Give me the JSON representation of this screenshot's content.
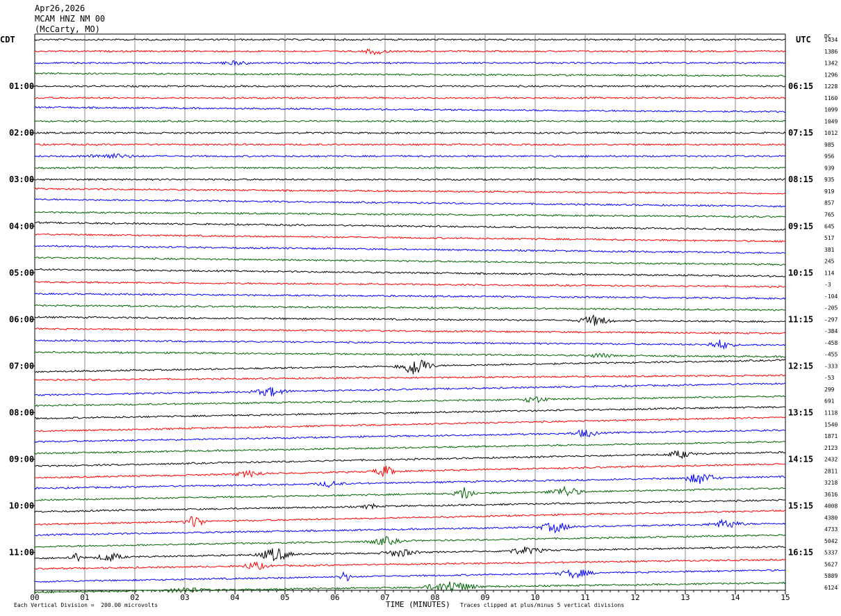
{
  "header": {
    "date": "Apr26,2026",
    "station": "MCAM HNZ NM 00",
    "location": "(McCarty, MO)"
  },
  "left_tz": "CDT",
  "right_tz": "UTC",
  "dc_header": "DC",
  "footer": {
    "scale": "Each Vertical Division =  200.00 microvolts",
    "xlabel": "TIME (MINUTES)",
    "clip_note": "Traces clipped at plus/minus 5 vertical divisions"
  },
  "colors": {
    "trace_cycle": [
      "#000000",
      "#ff0000",
      "#0000ff",
      "#006400"
    ],
    "grid": "#888888"
  },
  "chart_data": {
    "type": "line",
    "description_free_fields": true,
    "x_ticks": [
      "00",
      "01",
      "02",
      "03",
      "04",
      "05",
      "06",
      "07",
      "08",
      "09",
      "10",
      "11",
      "12",
      "13",
      "14",
      "15"
    ],
    "xlim": [
      0,
      15
    ],
    "left_hour_labels": [
      {
        "row": 4,
        "label": "01:00"
      },
      {
        "row": 8,
        "label": "02:00"
      },
      {
        "row": 12,
        "label": "03:00"
      },
      {
        "row": 16,
        "label": "04:00"
      },
      {
        "row": 20,
        "label": "05:00"
      },
      {
        "row": 24,
        "label": "06:00"
      },
      {
        "row": 28,
        "label": "07:00"
      },
      {
        "row": 32,
        "label": "08:00"
      },
      {
        "row": 36,
        "label": "09:00"
      },
      {
        "row": 40,
        "label": "10:00"
      },
      {
        "row": 44,
        "label": "11:00"
      }
    ],
    "right_hour_labels": [
      {
        "row": 0,
        "label": ""
      },
      {
        "row": 4,
        "label": "06:15"
      },
      {
        "row": 8,
        "label": "07:15"
      },
      {
        "row": 12,
        "label": "08:15"
      },
      {
        "row": 16,
        "label": "09:15"
      },
      {
        "row": 20,
        "label": "10:15"
      },
      {
        "row": 24,
        "label": "11:15"
      },
      {
        "row": 28,
        "label": "12:15"
      },
      {
        "row": 32,
        "label": "13:15"
      },
      {
        "row": 36,
        "label": "14:15"
      },
      {
        "row": 40,
        "label": "15:15"
      },
      {
        "row": 44,
        "label": "16:15"
      }
    ],
    "dc_values": [
      "1434",
      "1386",
      "1342",
      "1296",
      "1228",
      "1160",
      "1099",
      "1049",
      "1012",
      "985",
      "956",
      "939",
      "935",
      "919",
      "857",
      "765",
      "645",
      "517",
      "381",
      "245",
      "114",
      "-3",
      "-104",
      "-205",
      "-297",
      "-384",
      "-458",
      "-455",
      "-333",
      "-53",
      "299",
      "691",
      "1118",
      "1540",
      "1871",
      "2123",
      "2432",
      "2811",
      "3218",
      "3616",
      "4008",
      "4380",
      "4733",
      "5042",
      "5337",
      "5627",
      "5889",
      "6124"
    ],
    "trace_count": 48,
    "trace_drift_fraction": [
      0.0,
      0.0,
      0.0,
      0.1,
      0.0,
      0.0,
      0.2,
      0.0,
      0.0,
      0.0,
      0.0,
      0.0,
      0.0,
      0.2,
      0.3,
      0.2,
      0.3,
      0.3,
      0.3,
      0.3,
      0.3,
      0.2,
      0.2,
      0.2,
      0.2,
      0.2,
      0.2,
      0.2,
      -0.5,
      -0.2,
      -0.5,
      -0.4,
      -0.5,
      -0.6,
      -0.5,
      -0.5,
      -0.6,
      -0.6,
      -0.5,
      -0.5,
      -0.5,
      -0.6,
      -0.5,
      -0.5,
      -0.5,
      -0.4,
      -0.5,
      -0.4
    ],
    "events": [
      {
        "row": 1,
        "minute": 6.8,
        "amp": 0.25,
        "dur": 0.4
      },
      {
        "row": 2,
        "minute": 4.0,
        "amp": 0.15,
        "dur": 0.5
      },
      {
        "row": 10,
        "minute": 1.5,
        "amp": 0.2,
        "dur": 0.8
      },
      {
        "row": 24,
        "minute": 11.2,
        "amp": 0.45,
        "dur": 0.5
      },
      {
        "row": 26,
        "minute": 13.7,
        "amp": 0.4,
        "dur": 0.4
      },
      {
        "row": 27,
        "minute": 11.3,
        "amp": 0.2,
        "dur": 0.4
      },
      {
        "row": 28,
        "minute": 7.6,
        "amp": 0.9,
        "dur": 0.5
      },
      {
        "row": 30,
        "minute": 4.7,
        "amp": 0.4,
        "dur": 0.5
      },
      {
        "row": 31,
        "minute": 10.0,
        "amp": 0.3,
        "dur": 0.4
      },
      {
        "row": 34,
        "minute": 11.0,
        "amp": 0.35,
        "dur": 0.4
      },
      {
        "row": 36,
        "minute": 12.9,
        "amp": 0.35,
        "dur": 0.4
      },
      {
        "row": 37,
        "minute": 7.0,
        "amp": 0.45,
        "dur": 0.4
      },
      {
        "row": 37,
        "minute": 4.3,
        "amp": 0.25,
        "dur": 0.5
      },
      {
        "row": 38,
        "minute": 13.3,
        "amp": 0.5,
        "dur": 0.5
      },
      {
        "row": 38,
        "minute": 5.9,
        "amp": 0.25,
        "dur": 0.4
      },
      {
        "row": 39,
        "minute": 8.6,
        "amp": 0.6,
        "dur": 0.3
      },
      {
        "row": 39,
        "minute": 10.6,
        "amp": 0.45,
        "dur": 0.5
      },
      {
        "row": 40,
        "minute": 6.7,
        "amp": 0.3,
        "dur": 0.2
      },
      {
        "row": 41,
        "minute": 3.2,
        "amp": 0.6,
        "dur": 0.3
      },
      {
        "row": 42,
        "minute": 10.4,
        "amp": 0.45,
        "dur": 0.5
      },
      {
        "row": 42,
        "minute": 13.8,
        "amp": 0.4,
        "dur": 0.5
      },
      {
        "row": 43,
        "minute": 7.0,
        "amp": 0.35,
        "dur": 0.5
      },
      {
        "row": 44,
        "minute": 0.8,
        "amp": 0.45,
        "dur": 0.2
      },
      {
        "row": 44,
        "minute": 1.5,
        "amp": 0.4,
        "dur": 0.4
      },
      {
        "row": 44,
        "minute": 4.8,
        "amp": 0.6,
        "dur": 0.5
      },
      {
        "row": 44,
        "minute": 7.3,
        "amp": 0.35,
        "dur": 0.5
      },
      {
        "row": 44,
        "minute": 9.8,
        "amp": 0.3,
        "dur": 0.6
      },
      {
        "row": 45,
        "minute": 4.4,
        "amp": 0.35,
        "dur": 0.4
      },
      {
        "row": 46,
        "minute": 6.2,
        "amp": 0.6,
        "dur": 0.15
      },
      {
        "row": 46,
        "minute": 10.8,
        "amp": 0.4,
        "dur": 0.5
      },
      {
        "row": 47,
        "minute": 8.3,
        "amp": 0.5,
        "dur": 0.8
      },
      {
        "row": 47,
        "minute": 3.0,
        "amp": 0.25,
        "dur": 0.6
      }
    ]
  }
}
